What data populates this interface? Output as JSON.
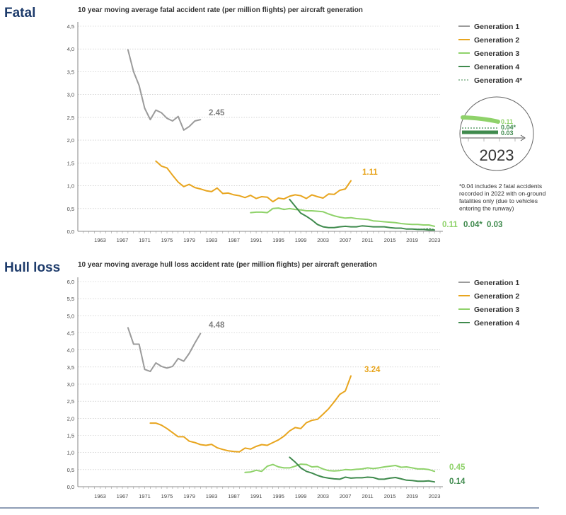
{
  "colors": {
    "gen1": "#9b9b9b",
    "gen2": "#e8a51e",
    "gen3": "#8fd26a",
    "gen4": "#3f8a4d",
    "title": "#1d3b6b",
    "grid": "#bbbbbb",
    "footer_line": "#1d3b6b"
  },
  "chart_data": [
    {
      "type": "line",
      "section_title": "Fatal",
      "title": "10 year moving average fatal accident rate (per million flights) per aircraft generation",
      "xlabel": "",
      "ylabel": "",
      "xlim": [
        1959,
        2024
      ],
      "ylim": [
        0,
        4.5
      ],
      "yticks": [
        0,
        0.5,
        1,
        1.5,
        2,
        2.5,
        3,
        3.5,
        4,
        4.5
      ],
      "ytick_labels": [
        "0,0",
        "0,5",
        "1,0",
        "1,5",
        "2,0",
        "2,5",
        "3,0",
        "3,5",
        "4,0",
        "4,5"
      ],
      "xticks": [
        1963,
        1967,
        1971,
        1975,
        1979,
        1983,
        1987,
        1991,
        1995,
        1999,
        2003,
        2007,
        2011,
        2015,
        2019,
        2023
      ],
      "grid": true,
      "legend_position": "right",
      "series": [
        {
          "name": "Generation 1",
          "color_key": "gen1",
          "x": [
            1968,
            1969,
            1970,
            1971,
            1972,
            1973,
            1974,
            1975,
            1976,
            1977,
            1978,
            1979,
            1980,
            1981
          ],
          "values": [
            3.98,
            3.5,
            3.2,
            2.7,
            2.45,
            2.66,
            2.6,
            2.48,
            2.42,
            2.52,
            2.22,
            2.3,
            2.42,
            2.45
          ],
          "end_label": "2.45",
          "dashed": false
        },
        {
          "name": "Generation 2",
          "color_key": "gen2",
          "x": [
            1973,
            1974,
            1975,
            1976,
            1977,
            1978,
            1979,
            1980,
            1981,
            1982,
            1983,
            1984,
            1985,
            1986,
            1987,
            1988,
            1989,
            1990,
            1991,
            1992,
            1993,
            1994,
            1995,
            1996,
            1997,
            1998,
            1999,
            2000,
            2001,
            2002,
            2003,
            2004,
            2005,
            2006,
            2007,
            2008
          ],
          "values": [
            1.54,
            1.43,
            1.39,
            1.23,
            1.08,
            0.98,
            1.03,
            0.96,
            0.93,
            0.89,
            0.87,
            0.95,
            0.83,
            0.84,
            0.8,
            0.78,
            0.74,
            0.79,
            0.72,
            0.76,
            0.75,
            0.65,
            0.73,
            0.71,
            0.77,
            0.8,
            0.78,
            0.72,
            0.8,
            0.76,
            0.73,
            0.82,
            0.81,
            0.9,
            0.93,
            1.11
          ],
          "end_label": "1.11",
          "dashed": false
        },
        {
          "name": "Generation 3",
          "color_key": "gen3",
          "x": [
            1990,
            1991,
            1992,
            1993,
            1994,
            1995,
            1996,
            1997,
            1998,
            1999,
            2000,
            2001,
            2002,
            2003,
            2004,
            2005,
            2006,
            2007,
            2008,
            2009,
            2010,
            2011,
            2012,
            2013,
            2014,
            2015,
            2016,
            2017,
            2018,
            2019,
            2020,
            2021,
            2022,
            2023
          ],
          "values": [
            0.41,
            0.42,
            0.42,
            0.41,
            0.5,
            0.51,
            0.48,
            0.5,
            0.48,
            0.47,
            0.45,
            0.45,
            0.44,
            0.43,
            0.38,
            0.34,
            0.31,
            0.29,
            0.3,
            0.28,
            0.27,
            0.26,
            0.23,
            0.22,
            0.21,
            0.2,
            0.19,
            0.17,
            0.16,
            0.15,
            0.15,
            0.14,
            0.14,
            0.11
          ],
          "end_label": "0.11",
          "dashed": false
        },
        {
          "name": "Generation 4",
          "color_key": "gen4",
          "x": [
            1997,
            1998,
            1999,
            2000,
            2001,
            2002,
            2003,
            2004,
            2005,
            2006,
            2007,
            2008,
            2009,
            2010,
            2011,
            2012,
            2013,
            2014,
            2015,
            2016,
            2017,
            2018,
            2019,
            2020,
            2021,
            2022,
            2023
          ],
          "values": [
            0.7,
            0.55,
            0.4,
            0.33,
            0.25,
            0.15,
            0.1,
            0.08,
            0.08,
            0.1,
            0.11,
            0.1,
            0.1,
            0.12,
            0.11,
            0.1,
            0.1,
            0.1,
            0.08,
            0.07,
            0.07,
            0.05,
            0.05,
            0.04,
            0.04,
            0.03,
            0.03
          ],
          "end_label": "0.03",
          "dashed": false
        },
        {
          "name": "Generation 4*",
          "color_key": "gen4",
          "x": [
            2018,
            2019,
            2020,
            2021,
            2022,
            2023
          ],
          "values": [
            0.05,
            0.05,
            0.05,
            0.05,
            0.06,
            0.04
          ],
          "end_label": "0.04*",
          "dashed": true
        }
      ],
      "inset": {
        "year": "2023",
        "labels": [
          "0.11",
          "0.04*",
          "0.03"
        ]
      },
      "footnote": [
        "*0.04 includes 2 fatal accidents",
        "recorded in 2022 with on-ground",
        "fatalities only (due to vehicles",
        "entering the runway)"
      ]
    },
    {
      "type": "line",
      "section_title": "Hull loss",
      "title": "10 year moving average hull loss accident rate (per million flights) per aircraft generation",
      "xlabel": "",
      "ylabel": "",
      "xlim": [
        1959,
        2024
      ],
      "ylim": [
        0,
        6.0
      ],
      "yticks": [
        0,
        0.5,
        1,
        1.5,
        2,
        2.5,
        3,
        3.5,
        4,
        4.5,
        5,
        5.5,
        6
      ],
      "ytick_labels": [
        "0,0",
        "0,5",
        "1,0",
        "1,5",
        "2,0",
        "2,5",
        "3,0",
        "3,5",
        "4,0",
        "4,5",
        "5,0",
        "5,5",
        "6,0"
      ],
      "xticks": [
        1963,
        1967,
        1971,
        1975,
        1979,
        1983,
        1987,
        1991,
        1995,
        1999,
        2003,
        2007,
        2011,
        2015,
        2019,
        2023
      ],
      "grid": true,
      "legend_position": "right",
      "series": [
        {
          "name": "Generation 1",
          "color_key": "gen1",
          "x": [
            1968,
            1969,
            1970,
            1971,
            1972,
            1973,
            1974,
            1975,
            1976,
            1977,
            1978,
            1979,
            1980,
            1981
          ],
          "values": [
            4.65,
            4.17,
            4.17,
            3.43,
            3.37,
            3.62,
            3.52,
            3.47,
            3.52,
            3.75,
            3.67,
            3.9,
            4.2,
            4.48
          ],
          "end_label": "4.48",
          "dashed": false
        },
        {
          "name": "Generation 2",
          "color_key": "gen2",
          "x": [
            1972,
            1973,
            1974,
            1975,
            1976,
            1977,
            1978,
            1979,
            1980,
            1981,
            1982,
            1983,
            1984,
            1985,
            1986,
            1987,
            1988,
            1989,
            1990,
            1991,
            1992,
            1993,
            1994,
            1995,
            1996,
            1997,
            1998,
            1999,
            2000,
            2001,
            2002,
            2003,
            2004,
            2005,
            2006,
            2007,
            2008
          ],
          "values": [
            1.86,
            1.86,
            1.8,
            1.7,
            1.58,
            1.46,
            1.46,
            1.33,
            1.29,
            1.23,
            1.21,
            1.24,
            1.14,
            1.09,
            1.05,
            1.03,
            1.02,
            1.13,
            1.1,
            1.18,
            1.23,
            1.21,
            1.29,
            1.37,
            1.48,
            1.63,
            1.73,
            1.7,
            1.87,
            1.94,
            1.97,
            2.12,
            2.28,
            2.48,
            2.7,
            2.8,
            3.24
          ],
          "end_label": "3.24",
          "dashed": false
        },
        {
          "name": "Generation 3",
          "color_key": "gen3",
          "x": [
            1989,
            1990,
            1991,
            1992,
            1993,
            1994,
            1995,
            1996,
            1997,
            1998,
            1999,
            2000,
            2001,
            2002,
            2003,
            2004,
            2005,
            2006,
            2007,
            2008,
            2009,
            2010,
            2011,
            2012,
            2013,
            2014,
            2015,
            2016,
            2017,
            2018,
            2019,
            2020,
            2021,
            2022,
            2023
          ],
          "values": [
            0.42,
            0.43,
            0.48,
            0.45,
            0.6,
            0.65,
            0.58,
            0.55,
            0.55,
            0.6,
            0.66,
            0.65,
            0.58,
            0.59,
            0.52,
            0.47,
            0.46,
            0.47,
            0.5,
            0.49,
            0.51,
            0.52,
            0.55,
            0.53,
            0.55,
            0.58,
            0.6,
            0.62,
            0.57,
            0.58,
            0.55,
            0.52,
            0.52,
            0.5,
            0.45
          ],
          "end_label": "0.45",
          "dashed": false
        },
        {
          "name": "Generation 4",
          "color_key": "gen4",
          "x": [
            1997,
            1998,
            1999,
            2000,
            2001,
            2002,
            2003,
            2004,
            2005,
            2006,
            2007,
            2008,
            2009,
            2010,
            2011,
            2012,
            2013,
            2014,
            2015,
            2016,
            2017,
            2018,
            2019,
            2020,
            2021,
            2022,
            2023
          ],
          "values": [
            0.86,
            0.72,
            0.55,
            0.45,
            0.4,
            0.33,
            0.28,
            0.25,
            0.23,
            0.22,
            0.28,
            0.25,
            0.26,
            0.26,
            0.28,
            0.27,
            0.22,
            0.22,
            0.25,
            0.27,
            0.23,
            0.19,
            0.18,
            0.16,
            0.16,
            0.17,
            0.14
          ],
          "end_label": "0.14",
          "dashed": false
        }
      ]
    }
  ]
}
